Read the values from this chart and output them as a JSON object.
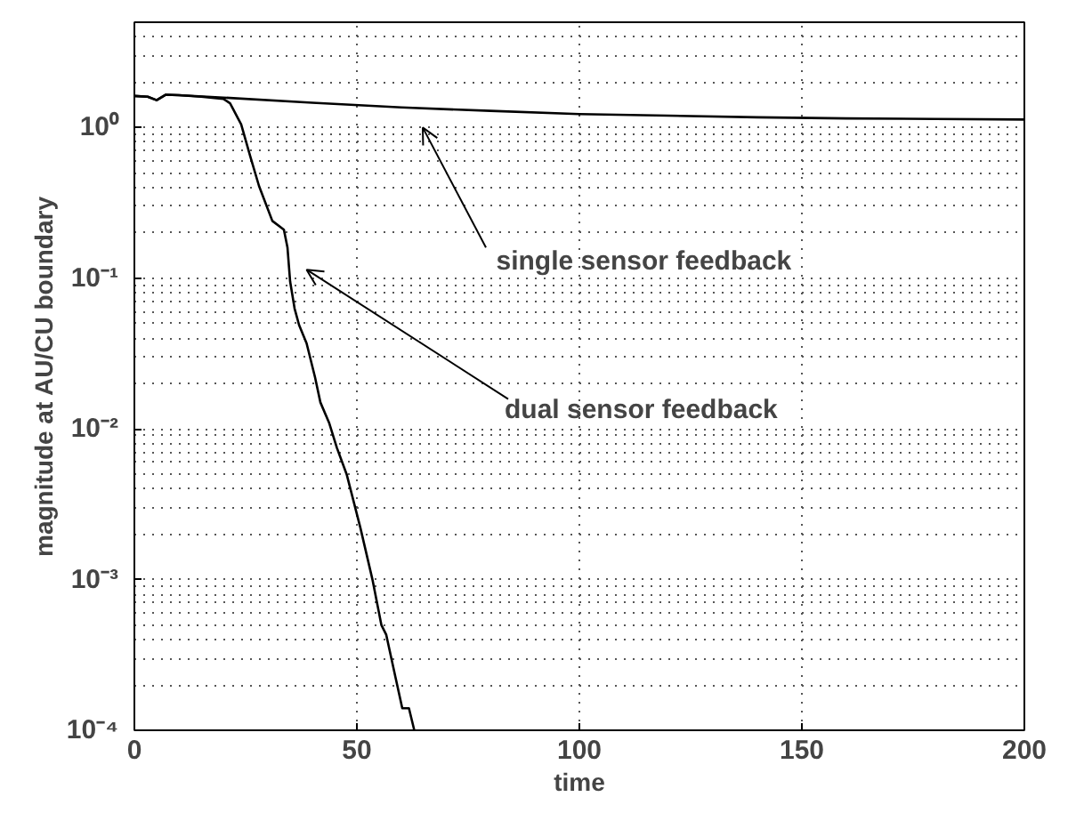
{
  "chart_data": {
    "type": "line",
    "xlabel": "time",
    "ylabel": "magnitude at AU/CU boundary",
    "log": "y",
    "xlim": [
      0,
      200
    ],
    "ylim": [
      0.0001,
      5
    ],
    "xticks": [
      0,
      50,
      100,
      150,
      200
    ],
    "yticks": [
      {
        "value": 0.0001,
        "label": "10⁻⁴"
      },
      {
        "value": 0.001,
        "label": "10⁻³"
      },
      {
        "value": 0.01,
        "label": "10⁻²"
      },
      {
        "value": 0.1,
        "label": "10⁻¹"
      },
      {
        "value": 1,
        "label": "10⁰"
      }
    ],
    "grid": true,
    "line_style": "solid",
    "marker": "none",
    "series": [
      {
        "color": "#000000",
        "x": [
          0,
          3,
          5,
          7,
          10,
          20,
          40,
          60,
          80,
          100,
          120,
          140,
          160,
          180,
          200
        ],
        "values": [
          1.62,
          1.6,
          1.52,
          1.65,
          1.64,
          1.58,
          1.46,
          1.36,
          1.29,
          1.23,
          1.2,
          1.17,
          1.15,
          1.14,
          1.13
        ]
      },
      {
        "color": "#000000",
        "x": [
          0,
          3,
          5,
          7,
          10,
          15,
          20,
          21.5,
          24,
          26,
          28,
          31,
          33.6,
          34.4,
          35,
          36,
          37,
          38.7,
          40.6,
          41.8,
          43.75,
          45.5,
          47.7,
          50.8,
          53.5,
          55.5,
          56.6,
          58.6,
          60.2,
          61.7,
          62.9
        ],
        "values": [
          1.62,
          1.6,
          1.52,
          1.65,
          1.64,
          1.6,
          1.55,
          1.45,
          1.05,
          0.65,
          0.41,
          0.24,
          0.21,
          0.16,
          0.095,
          0.063,
          0.049,
          0.037,
          0.022,
          0.015,
          0.011,
          0.0075,
          0.005,
          0.0022,
          0.001,
          0.0005,
          0.00043,
          0.00023,
          0.00014,
          0.00014,
          0.0001
        ]
      }
    ],
    "annotations": [
      "single sensor feedback",
      "dual sensor feedback"
    ]
  }
}
